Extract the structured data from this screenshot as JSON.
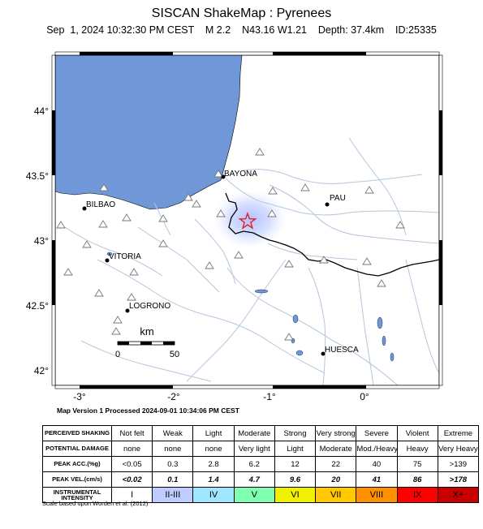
{
  "header": {
    "title": "SISCAN ShakeMap : Pyrenees",
    "subtitle": "Sep  1, 2024 10:32:30 PM CEST    M 2.2    N43.16 W1.21    Depth: 37.4km    ID:25335"
  },
  "map": {
    "lat_labels": [
      "44°",
      "43.5°",
      "43°",
      "42.5°",
      "42°"
    ],
    "lon_labels": [
      "-3°",
      "-2°",
      "-1°",
      "0°"
    ],
    "cities": [
      {
        "name": "BAYONA",
        "key": "bayona"
      },
      {
        "name": "BILBAO",
        "key": "bilbao"
      },
      {
        "name": "PAU",
        "key": "pau"
      },
      {
        "name": "VITORIA",
        "key": "vitoria"
      },
      {
        "name": "LOGRONO",
        "key": "logrono"
      },
      {
        "name": "HUESCA",
        "key": "huesca"
      }
    ],
    "scale": {
      "unit": "km",
      "start": "0",
      "end": "50"
    },
    "colors": {
      "sea": "#7098d8",
      "land": "#ffffff",
      "rivers": "#b8c8dc",
      "border": "#000000",
      "epicenter": "#e02020",
      "shaking": "#c8d4ff"
    }
  },
  "version_text": "Map Version 1 Processed 2024-09-01 10:34:06 PM CEST",
  "legend": {
    "rows": [
      {
        "label": "PERCEIVED SHAKING",
        "values": [
          "Not felt",
          "Weak",
          "Light",
          "Moderate",
          "Strong",
          "Very strong",
          "Severe",
          "Violent",
          "Extreme"
        ]
      },
      {
        "label": "POTENTIAL DAMAGE",
        "values": [
          "none",
          "none",
          "none",
          "Very light",
          "Light",
          "Moderate",
          "Mod./Heavy",
          "Heavy",
          "Very Heavy"
        ]
      },
      {
        "label": "PEAK ACC.(%g)",
        "values": [
          "<0.05",
          "0.3",
          "2.8",
          "6.2",
          "12",
          "22",
          "40",
          "75",
          ">139"
        ]
      },
      {
        "label": "PEAK VEL.(cm/s)",
        "values": [
          "<0.02",
          "0.1",
          "1.4",
          "4.7",
          "9.6",
          "20",
          "41",
          "86",
          ">178"
        ]
      },
      {
        "label": "INSTRUMENTAL INTENSITY",
        "values": [
          "I",
          "II-III",
          "IV",
          "V",
          "VI",
          "VII",
          "VIII",
          "IX",
          "X+"
        ]
      }
    ],
    "intensity_colors": [
      "#ffffff",
      "#bfccff",
      "#a0e6ff",
      "#80ffb0",
      "#f0f000",
      "#ffc800",
      "#ff9100",
      "#ff0000",
      "#c80000"
    ]
  },
  "footnote": "Scale based upon Worden et al. (2012)"
}
